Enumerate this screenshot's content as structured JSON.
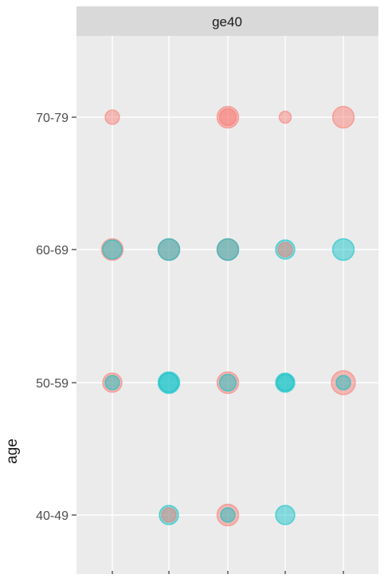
{
  "chart_data": {
    "type": "scatter",
    "facet_label": "ge40",
    "ylabel": "age",
    "xlabel": "",
    "y_categories": [
      "40-49",
      "50-59",
      "60-69",
      "70-79"
    ],
    "x_columns": 5,
    "grid": true,
    "legend": "none",
    "colors": {
      "pink": "#F8766D",
      "teal": "#00BFC4",
      "panel": "#EBEBEB",
      "strip": "#D9D9D9",
      "gridline": "#FFFFFF"
    },
    "points": [
      {
        "x": 1,
        "y": "70-79",
        "series": "pink",
        "size": 4
      },
      {
        "x": 3,
        "y": "70-79",
        "series": "pink",
        "size": 7
      },
      {
        "x": 3,
        "y": "70-79",
        "series": "pink",
        "size": 5
      },
      {
        "x": 4,
        "y": "70-79",
        "series": "pink",
        "size": 3
      },
      {
        "x": 5,
        "y": "70-79",
        "series": "pink",
        "size": 7
      },
      {
        "x": 1,
        "y": "60-69",
        "series": "pink",
        "size": 7
      },
      {
        "x": 1,
        "y": "60-69",
        "series": "teal",
        "size": 6
      },
      {
        "x": 2,
        "y": "60-69",
        "series": "pink",
        "size": 7
      },
      {
        "x": 2,
        "y": "60-69",
        "series": "teal",
        "size": 7
      },
      {
        "x": 3,
        "y": "60-69",
        "series": "pink",
        "size": 7
      },
      {
        "x": 3,
        "y": "60-69",
        "series": "teal",
        "size": 7
      },
      {
        "x": 4,
        "y": "60-69",
        "series": "teal",
        "size": 6
      },
      {
        "x": 4,
        "y": "60-69",
        "series": "pink",
        "size": 4
      },
      {
        "x": 5,
        "y": "60-69",
        "series": "teal",
        "size": 7
      },
      {
        "x": 1,
        "y": "50-59",
        "series": "pink",
        "size": 6
      },
      {
        "x": 1,
        "y": "50-59",
        "series": "teal",
        "size": 4
      },
      {
        "x": 2,
        "y": "50-59",
        "series": "teal",
        "size": 7
      },
      {
        "x": 2,
        "y": "50-59",
        "series": "teal",
        "size": 6
      },
      {
        "x": 3,
        "y": "50-59",
        "series": "pink",
        "size": 7
      },
      {
        "x": 3,
        "y": "50-59",
        "series": "teal",
        "size": 5
      },
      {
        "x": 4,
        "y": "50-59",
        "series": "teal",
        "size": 6
      },
      {
        "x": 4,
        "y": "50-59",
        "series": "teal",
        "size": 5
      },
      {
        "x": 5,
        "y": "50-59",
        "series": "pink",
        "size": 8
      },
      {
        "x": 5,
        "y": "50-59",
        "series": "teal",
        "size": 4
      },
      {
        "x": 2,
        "y": "40-49",
        "series": "teal",
        "size": 6
      },
      {
        "x": 2,
        "y": "40-49",
        "series": "pink",
        "size": 4
      },
      {
        "x": 3,
        "y": "40-49",
        "series": "pink",
        "size": 7
      },
      {
        "x": 3,
        "y": "40-49",
        "series": "teal",
        "size": 4
      },
      {
        "x": 4,
        "y": "40-49",
        "series": "teal",
        "size": 6
      }
    ]
  }
}
